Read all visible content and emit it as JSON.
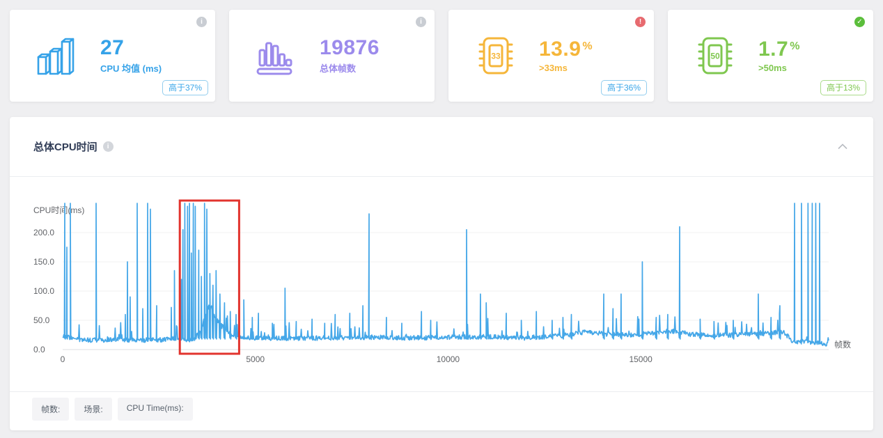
{
  "cards": [
    {
      "number": "27",
      "label": "CPU 均值 (ms)",
      "accent": "#35A2E8",
      "badge": "高于37%",
      "badge_color": "#3AA6E8",
      "badge_border": "#93CDEE",
      "status_glyph": "i",
      "status_color": "#C9CDD3",
      "status_name": "info"
    },
    {
      "number": "19876",
      "label": "总体帧数",
      "accent": "#9C8BEC",
      "status_glyph": "i",
      "status_color": "#C9CDD3",
      "status_name": "info"
    },
    {
      "number": "13.9",
      "unit": "%",
      "label": ">33ms",
      "chip_text": "33",
      "accent": "#F5B63A",
      "badge": "高于36%",
      "badge_color": "#3AA6E8",
      "badge_border": "#93CDEE",
      "status_glyph": "!",
      "status_color": "#E76A6F",
      "status_name": "warning"
    },
    {
      "number": "1.7",
      "unit": "%",
      "label": ">50ms",
      "chip_text": "50",
      "accent": "#7FC74F",
      "badge": "高于13%",
      "badge_color": "#7FC74F",
      "badge_border": "#ABDB8B",
      "status_glyph": "✓",
      "status_color": "#5BBE3B",
      "status_name": "success"
    }
  ],
  "panel": {
    "title": "总体CPU时间",
    "info_glyph": "i"
  },
  "chart_data": {
    "type": "line",
    "title": "总体CPU时间",
    "ylabel": "CPU时间(ms)",
    "xlabel": "帧数",
    "x_range": [
      0,
      19876
    ],
    "x_tick_values": [
      0,
      5000,
      10000,
      15000
    ],
    "x_tick_labels": [
      "0",
      "5000",
      "10000",
      "15000"
    ],
    "y_ticks": [
      0,
      50,
      100,
      150,
      200
    ],
    "y_tick_labels": [
      "0.0",
      "50.0",
      "100.0",
      "150.0",
      "200.0"
    ],
    "y_clip": 250,
    "grid": true,
    "legend_position": "none",
    "line_color": "#45A7E8",
    "highlight_region": {
      "x_start": 3040,
      "x_end": 4580,
      "color": "#E2342E",
      "meaning": "red highlight rectangle over spike cluster"
    },
    "series": [
      {
        "name": "CPU Time(ms)",
        "baseline_points": [
          [
            0,
            24
          ],
          [
            400,
            17
          ],
          [
            900,
            16
          ],
          [
            1500,
            17
          ],
          [
            2100,
            16
          ],
          [
            2700,
            17
          ],
          [
            3040,
            20
          ],
          [
            3250,
            15
          ],
          [
            3450,
            20
          ],
          [
            3600,
            35
          ],
          [
            3750,
            70
          ],
          [
            3850,
            75
          ],
          [
            3950,
            55
          ],
          [
            4100,
            42
          ],
          [
            4250,
            32
          ],
          [
            4400,
            26
          ],
          [
            4550,
            22
          ],
          [
            5000,
            20
          ],
          [
            6000,
            19
          ],
          [
            7000,
            20
          ],
          [
            8000,
            21
          ],
          [
            9000,
            20
          ],
          [
            10000,
            21
          ],
          [
            11000,
            22
          ],
          [
            12000,
            20
          ],
          [
            13000,
            24
          ],
          [
            13600,
            30
          ],
          [
            14200,
            26
          ],
          [
            14800,
            25
          ],
          [
            15300,
            28
          ],
          [
            15800,
            32
          ],
          [
            16300,
            26
          ],
          [
            17000,
            24
          ],
          [
            17700,
            26
          ],
          [
            18300,
            28
          ],
          [
            18700,
            30
          ],
          [
            18950,
            14
          ],
          [
            19300,
            13
          ],
          [
            19650,
            12
          ],
          [
            19780,
            8
          ],
          [
            19876,
            13
          ]
        ],
        "spikes": [
          [
            54,
            250
          ],
          [
            108,
            175
          ],
          [
            199,
            250
          ],
          [
            867,
            250
          ],
          [
            1626,
            60
          ],
          [
            1680,
            150
          ],
          [
            1750,
            90
          ],
          [
            1933,
            250
          ],
          [
            2078,
            70
          ],
          [
            2205,
            250
          ],
          [
            2277,
            240
          ],
          [
            2440,
            75
          ],
          [
            2819,
            72
          ],
          [
            2900,
            135
          ],
          [
            3080,
            120
          ],
          [
            3120,
            205
          ],
          [
            3170,
            250
          ],
          [
            3240,
            245
          ],
          [
            3290,
            250
          ],
          [
            3340,
            165
          ],
          [
            3390,
            250
          ],
          [
            3440,
            245
          ],
          [
            3530,
            170
          ],
          [
            3600,
            125
          ],
          [
            3680,
            250
          ],
          [
            3740,
            240
          ],
          [
            3820,
            130
          ],
          [
            3900,
            110
          ],
          [
            3980,
            135
          ],
          [
            4080,
            95
          ],
          [
            4200,
            80
          ],
          [
            4350,
            65
          ],
          [
            4500,
            60
          ],
          [
            4700,
            85
          ],
          [
            4920,
            55
          ],
          [
            5080,
            62
          ],
          [
            5440,
            45
          ],
          [
            5770,
            105
          ],
          [
            6060,
            48
          ],
          [
            6470,
            52
          ],
          [
            6800,
            45
          ],
          [
            7070,
            60
          ],
          [
            7450,
            62
          ],
          [
            7790,
            75
          ],
          [
            7950,
            232
          ],
          [
            8400,
            55
          ],
          [
            8800,
            45
          ],
          [
            9310,
            65
          ],
          [
            9550,
            50
          ],
          [
            10480,
            205
          ],
          [
            10840,
            95
          ],
          [
            10990,
            80
          ],
          [
            11510,
            62
          ],
          [
            11900,
            50
          ],
          [
            12290,
            65
          ],
          [
            12700,
            50
          ],
          [
            12980,
            55
          ],
          [
            13200,
            60
          ],
          [
            14040,
            95
          ],
          [
            14280,
            70
          ],
          [
            14490,
            95
          ],
          [
            15040,
            150
          ],
          [
            15400,
            55
          ],
          [
            15700,
            60
          ],
          [
            16010,
            210
          ],
          [
            16540,
            52
          ],
          [
            16900,
            48
          ],
          [
            17400,
            50
          ],
          [
            18050,
            95
          ],
          [
            18380,
            55
          ],
          [
            18610,
            75
          ],
          [
            18990,
            250
          ],
          [
            19170,
            250
          ],
          [
            19340,
            250
          ],
          [
            19450,
            250
          ],
          [
            19540,
            250
          ],
          [
            19640,
            250
          ]
        ]
      }
    ],
    "noise": {
      "seed": 9,
      "amplitude": 4,
      "bump_probability": 0.06,
      "bump_amplitude": 30
    }
  },
  "footer": {
    "chips": [
      "帧数:",
      "场景:",
      "CPU Time(ms):"
    ]
  }
}
